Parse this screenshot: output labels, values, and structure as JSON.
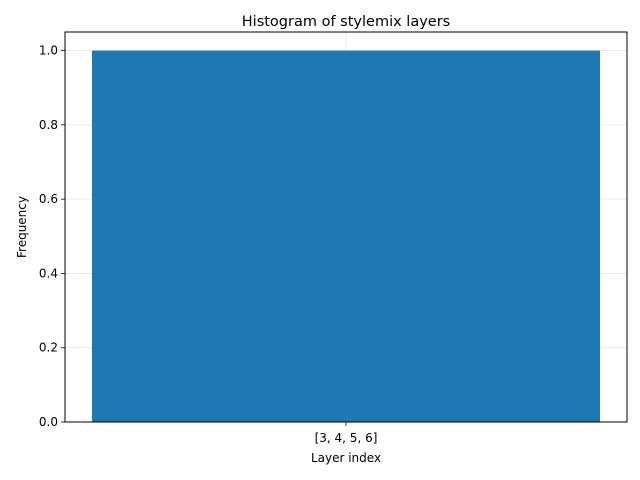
{
  "chart_data": {
    "type": "bar",
    "title": "Histogram of stylemix layers",
    "xlabel": "Layer index",
    "ylabel": "Frequency",
    "categories": [
      "[3, 4, 5, 6]"
    ],
    "values": [
      1.0
    ],
    "ylim": [
      0,
      1.05
    ],
    "yticks": [
      0.0,
      0.2,
      0.4,
      0.6,
      0.8,
      1.0
    ],
    "ytick_labels": [
      "0.0",
      "0.2",
      "0.4",
      "0.6",
      "0.8",
      "1.0"
    ],
    "grid": true,
    "bar_color": "#1f77b4"
  }
}
